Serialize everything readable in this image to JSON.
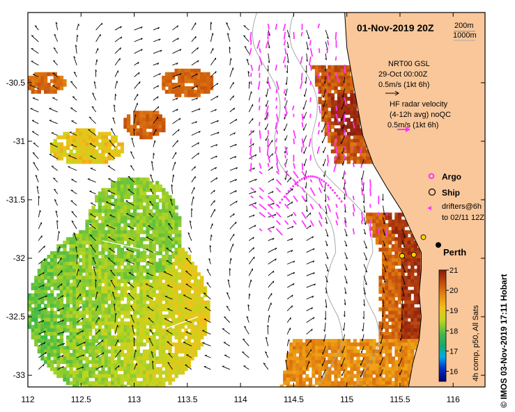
{
  "title": "01-Nov-2019 20Z",
  "depth_labels": [
    "200m",
    "1000m"
  ],
  "axes": {
    "x_ticks": [
      "112",
      "112.5",
      "113",
      "113.5",
      "114",
      "114.5",
      "115",
      "115.5",
      "116"
    ],
    "y_ticks": [
      "-30.5",
      "-31",
      "-31.5",
      "-32",
      "-32.5",
      "-33"
    ],
    "x_range": [
      112,
      116.3
    ],
    "y_range": [
      -33.1,
      -29.9
    ]
  },
  "legend": {
    "nrt_lines": [
      "NRT00 GSL",
      "29-Oct 00:00Z",
      "0.5m/s (1kt 6h)"
    ],
    "hf_lines": [
      "HF radar velocity",
      "(4-12h avg) noQC",
      "0.5m/s (1kt 6h)"
    ],
    "argo_label": "Argo",
    "ship_label": "Ship",
    "drifters_lines": [
      "drifters@6h",
      "to 02/11 12Z"
    ]
  },
  "place": {
    "name": "Perth",
    "lon": 115.86,
    "lat": -31.95
  },
  "colorbar": {
    "ticks": [
      "21",
      "20",
      "19",
      "18",
      "17",
      "16"
    ],
    "min": 15.5,
    "max": 21,
    "title": "4h comp, p50, All Sats"
  },
  "credit": "© IMOS 03-Nov-2019 17:11 Hobart",
  "colors": {
    "land": "#f9c79a",
    "ocean": "#ffffff",
    "hf_vectors": "#ff33ff",
    "model_vectors": "#000000",
    "contours": "#a8a8a8",
    "ship": "#ffd400"
  }
}
